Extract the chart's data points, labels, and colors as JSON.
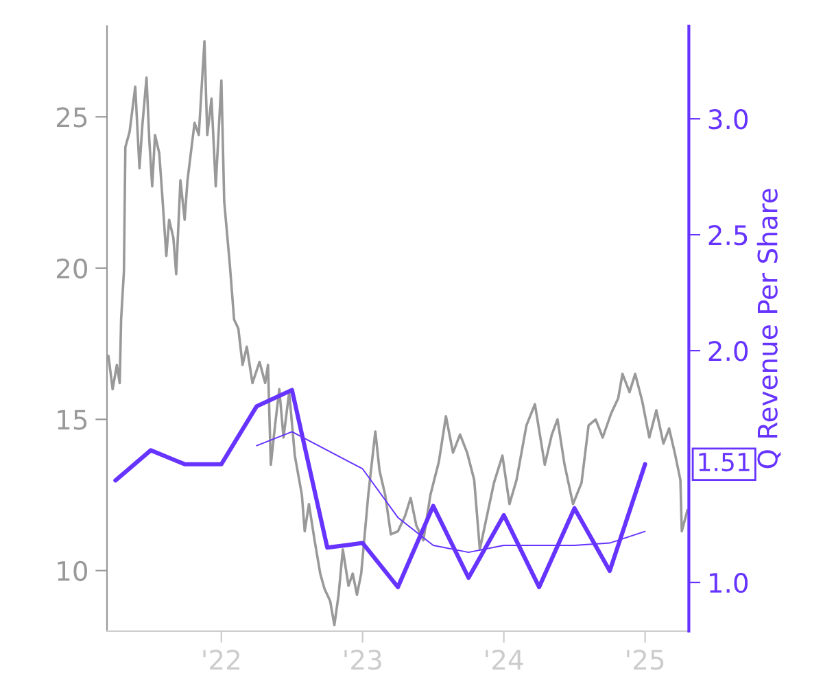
{
  "chart_data": {
    "type": "line",
    "y2label": "Q Revenue Per Share",
    "xlim": [
      2021.19,
      2025.31
    ],
    "xticks": [
      {
        "value": 2022,
        "label": "'22"
      },
      {
        "value": 2023,
        "label": "'23"
      },
      {
        "value": 2024,
        "label": "'24"
      },
      {
        "value": 2025,
        "label": "'25"
      }
    ],
    "ylim": [
      8,
      28
    ],
    "yticks": [
      10,
      15,
      20,
      25
    ],
    "y2lim": [
      0.79,
      3.4
    ],
    "y2ticks": [
      {
        "value": 1.0,
        "label": "1.0"
      },
      {
        "value": 2.0,
        "label": "2.0"
      },
      {
        "value": 2.5,
        "label": "2.5"
      },
      {
        "value": 3.0,
        "label": "3.0"
      }
    ],
    "grid": false,
    "annotations": [
      "1.51"
    ],
    "legend": false,
    "series": [
      {
        "color": "#999999",
        "x": [
          2021.2,
          2021.23,
          2021.26,
          2021.28,
          2021.29,
          2021.31,
          2021.32,
          2021.35,
          2021.39,
          2021.42,
          2021.44,
          2021.47,
          2021.49,
          2021.51,
          2021.53,
          2021.56,
          2021.58,
          2021.61,
          2021.63,
          2021.66,
          2021.68,
          2021.71,
          2021.74,
          2021.76,
          2021.81,
          2021.84,
          2021.88,
          2021.9,
          2021.93,
          2021.96,
          2022.0,
          2022.02,
          2022.06,
          2022.09,
          2022.12,
          2022.15,
          2022.18,
          2022.22,
          2022.27,
          2022.31,
          2022.33,
          2022.35,
          2022.38,
          2022.41,
          2022.44,
          2022.48,
          2022.52,
          2022.57,
          2022.59,
          2022.62,
          2022.66,
          2022.7,
          2022.73,
          2022.77,
          2022.8,
          2022.83,
          2022.86,
          2022.9,
          2022.93,
          2022.96,
          2022.99,
          2023.04,
          2023.09,
          2023.12,
          2023.16,
          2023.2,
          2023.25,
          2023.3,
          2023.34,
          2023.38,
          2023.43,
          2023.48,
          2023.54,
          2023.59,
          2023.64,
          2023.69,
          2023.74,
          2023.79,
          2023.83,
          2023.88,
          2023.93,
          2023.99,
          2024.04,
          2024.09,
          2024.16,
          2024.22,
          2024.29,
          2024.34,
          2024.38,
          2024.43,
          2024.49,
          2024.55,
          2024.6,
          2024.65,
          2024.7,
          2024.76,
          2024.81,
          2024.84,
          2024.89,
          2024.93,
          2024.98,
          2025.03,
          2025.08,
          2025.13,
          2025.17,
          2025.21,
          2025.25,
          2025.26,
          2025.3
        ],
        "values": [
          17.1,
          16.0,
          16.8,
          16.2,
          18.3,
          19.9,
          24.0,
          24.5,
          26.0,
          23.3,
          24.7,
          26.3,
          24.2,
          22.7,
          24.4,
          23.8,
          22.5,
          20.4,
          21.6,
          21.0,
          19.8,
          22.9,
          21.6,
          22.9,
          24.8,
          24.4,
          27.5,
          24.4,
          25.6,
          22.7,
          26.2,
          22.2,
          20.1,
          18.3,
          18.0,
          16.8,
          17.4,
          16.2,
          16.9,
          16.2,
          16.8,
          13.5,
          14.8,
          16.0,
          14.4,
          15.9,
          13.8,
          12.5,
          11.3,
          12.2,
          11.0,
          9.9,
          9.4,
          9.0,
          8.2,
          9.2,
          10.7,
          9.5,
          9.9,
          9.2,
          9.9,
          12.5,
          14.6,
          13.3,
          12.5,
          11.2,
          11.3,
          11.8,
          12.4,
          11.5,
          11.0,
          12.5,
          13.6,
          15.1,
          13.9,
          14.5,
          13.9,
          13.0,
          10.7,
          11.8,
          12.9,
          13.8,
          12.2,
          13.0,
          14.8,
          15.5,
          13.5,
          14.5,
          15.0,
          13.5,
          12.2,
          12.9,
          14.8,
          15.0,
          14.4,
          15.2,
          15.7,
          16.5,
          15.9,
          16.5,
          15.6,
          14.4,
          15.3,
          14.2,
          14.7,
          13.9,
          13.0,
          11.3,
          12.0
        ]
      },
      {
        "color": "#6633ff",
        "axis": "y2",
        "x": [
          2021.25,
          2021.5,
          2021.74,
          2022.0,
          2022.25,
          2022.5,
          2022.75,
          2023.0,
          2023.25,
          2023.5,
          2023.75,
          2024.0,
          2024.25,
          2024.5,
          2024.75,
          2025.0
        ],
        "values": [
          1.44,
          1.57,
          1.51,
          1.51,
          1.76,
          1.83,
          1.15,
          1.17,
          0.98,
          1.33,
          1.02,
          1.29,
          0.98,
          1.32,
          1.05,
          1.51
        ]
      },
      {
        "color": "#6633ff",
        "axis": "y2",
        "x": [
          2022.25,
          2022.5,
          2023.0,
          2023.25,
          2023.5,
          2023.75,
          2024.0,
          2024.25,
          2024.5,
          2024.75,
          2025.0
        ],
        "values": [
          1.59,
          1.65,
          1.49,
          1.28,
          1.16,
          1.13,
          1.16,
          1.16,
          1.16,
          1.17,
          1.22
        ]
      }
    ]
  }
}
